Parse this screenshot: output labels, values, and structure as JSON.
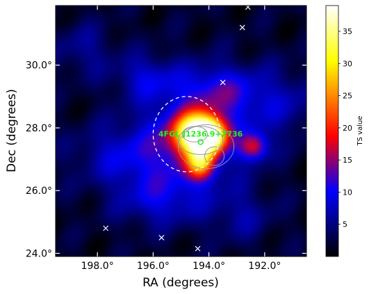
{
  "chart_data": {
    "type": "heatmap",
    "title": "",
    "xlabel": "RA (degrees)",
    "ylabel": "Dec (degrees)",
    "x_axis": {
      "range": [
        199.5,
        190.5
      ],
      "reversed": true,
      "tick_values": [
        198,
        196,
        194,
        192
      ],
      "tick_labels": [
        "198.0°",
        "196.0°",
        "194.0°",
        "192.0°"
      ]
    },
    "y_axis": {
      "range": [
        23.9,
        31.9
      ],
      "tick_values": [
        24,
        26,
        28,
        30
      ],
      "tick_labels": [
        "24.0°",
        "26.0°",
        "28.0°",
        "30.0°"
      ]
    },
    "colorbar": {
      "label": "TS value",
      "range": [
        0,
        39
      ],
      "ticks": [
        5,
        10,
        15,
        20,
        25,
        30,
        35
      ],
      "tick_labels": [
        "5",
        "10",
        "15",
        "20",
        "25",
        "30",
        "35"
      ],
      "colormap": "black-blue-red-yellow-white"
    },
    "hotspots": [
      {
        "ra": 194.45,
        "dec": 27.8,
        "sigma_ra": 0.55,
        "sigma_dec": 0.45,
        "ts": 34
      },
      {
        "ra": 193.95,
        "dec": 27.75,
        "sigma_ra": 0.38,
        "sigma_dec": 0.35,
        "ts": 24
      },
      {
        "ra": 194.3,
        "dec": 26.85,
        "sigma_ra": 0.35,
        "sigma_dec": 0.35,
        "ts": 18
      },
      {
        "ra": 192.4,
        "dec": 27.4,
        "sigma_ra": 0.35,
        "sigma_dec": 0.3,
        "ts": 14
      },
      {
        "ra": 194.6,
        "dec": 27.7,
        "sigma_ra": 1.35,
        "sigma_dec": 1.2,
        "ts": 9
      },
      {
        "ra": 193.6,
        "dec": 29.2,
        "sigma_ra": 0.9,
        "sigma_dec": 0.55,
        "ts": 7
      },
      {
        "ra": 197.0,
        "dec": 27.1,
        "sigma_ra": 1.3,
        "sigma_dec": 0.7,
        "ts": 6
      },
      {
        "ra": 196.2,
        "dec": 29.6,
        "sigma_ra": 0.8,
        "sigma_dec": 0.5,
        "ts": 6
      },
      {
        "ra": 195.8,
        "dec": 25.7,
        "sigma_ra": 1.1,
        "sigma_dec": 0.6,
        "ts": 6
      },
      {
        "ra": 191.5,
        "dec": 28.8,
        "sigma_ra": 1.2,
        "sigma_dec": 0.8,
        "ts": 5
      },
      {
        "ra": 198.5,
        "dec": 30.5,
        "sigma_ra": 0.8,
        "sigma_dec": 0.6,
        "ts": 4
      },
      {
        "ra": 192.8,
        "dec": 25.2,
        "sigma_ra": 0.8,
        "sigma_dec": 0.6,
        "ts": 4
      }
    ],
    "circle": {
      "center_ra": 194.8,
      "center_dec": 27.8,
      "radius_deg": 1.2,
      "style": "dashed",
      "color": "#ffffff"
    },
    "source": {
      "name": "4FGL J1236.9+2736",
      "ra": 194.3,
      "dec": 27.55,
      "color": "#22ee22"
    },
    "contours": [
      {
        "ra": 194.5,
        "dec": 27.8,
        "r_ra": 0.45,
        "r_dec": 0.25
      },
      {
        "ra": 194.3,
        "dec": 27.6,
        "r_ra": 0.8,
        "r_dec": 0.45
      },
      {
        "ra": 193.8,
        "dec": 27.1,
        "r_ra": 0.35,
        "r_dec": 0.3
      },
      {
        "ra": 194.1,
        "dec": 27.4,
        "r_ra": 1.0,
        "r_dec": 0.7
      }
    ],
    "crosses": [
      {
        "ra": 192.8,
        "dec": 31.2
      },
      {
        "ra": 192.6,
        "dec": 31.85
      },
      {
        "ra": 193.5,
        "dec": 29.45
      },
      {
        "ra": 197.7,
        "dec": 24.8
      },
      {
        "ra": 195.7,
        "dec": 24.5
      },
      {
        "ra": 194.4,
        "dec": 24.15
      }
    ],
    "grid": false,
    "legend": "none"
  }
}
